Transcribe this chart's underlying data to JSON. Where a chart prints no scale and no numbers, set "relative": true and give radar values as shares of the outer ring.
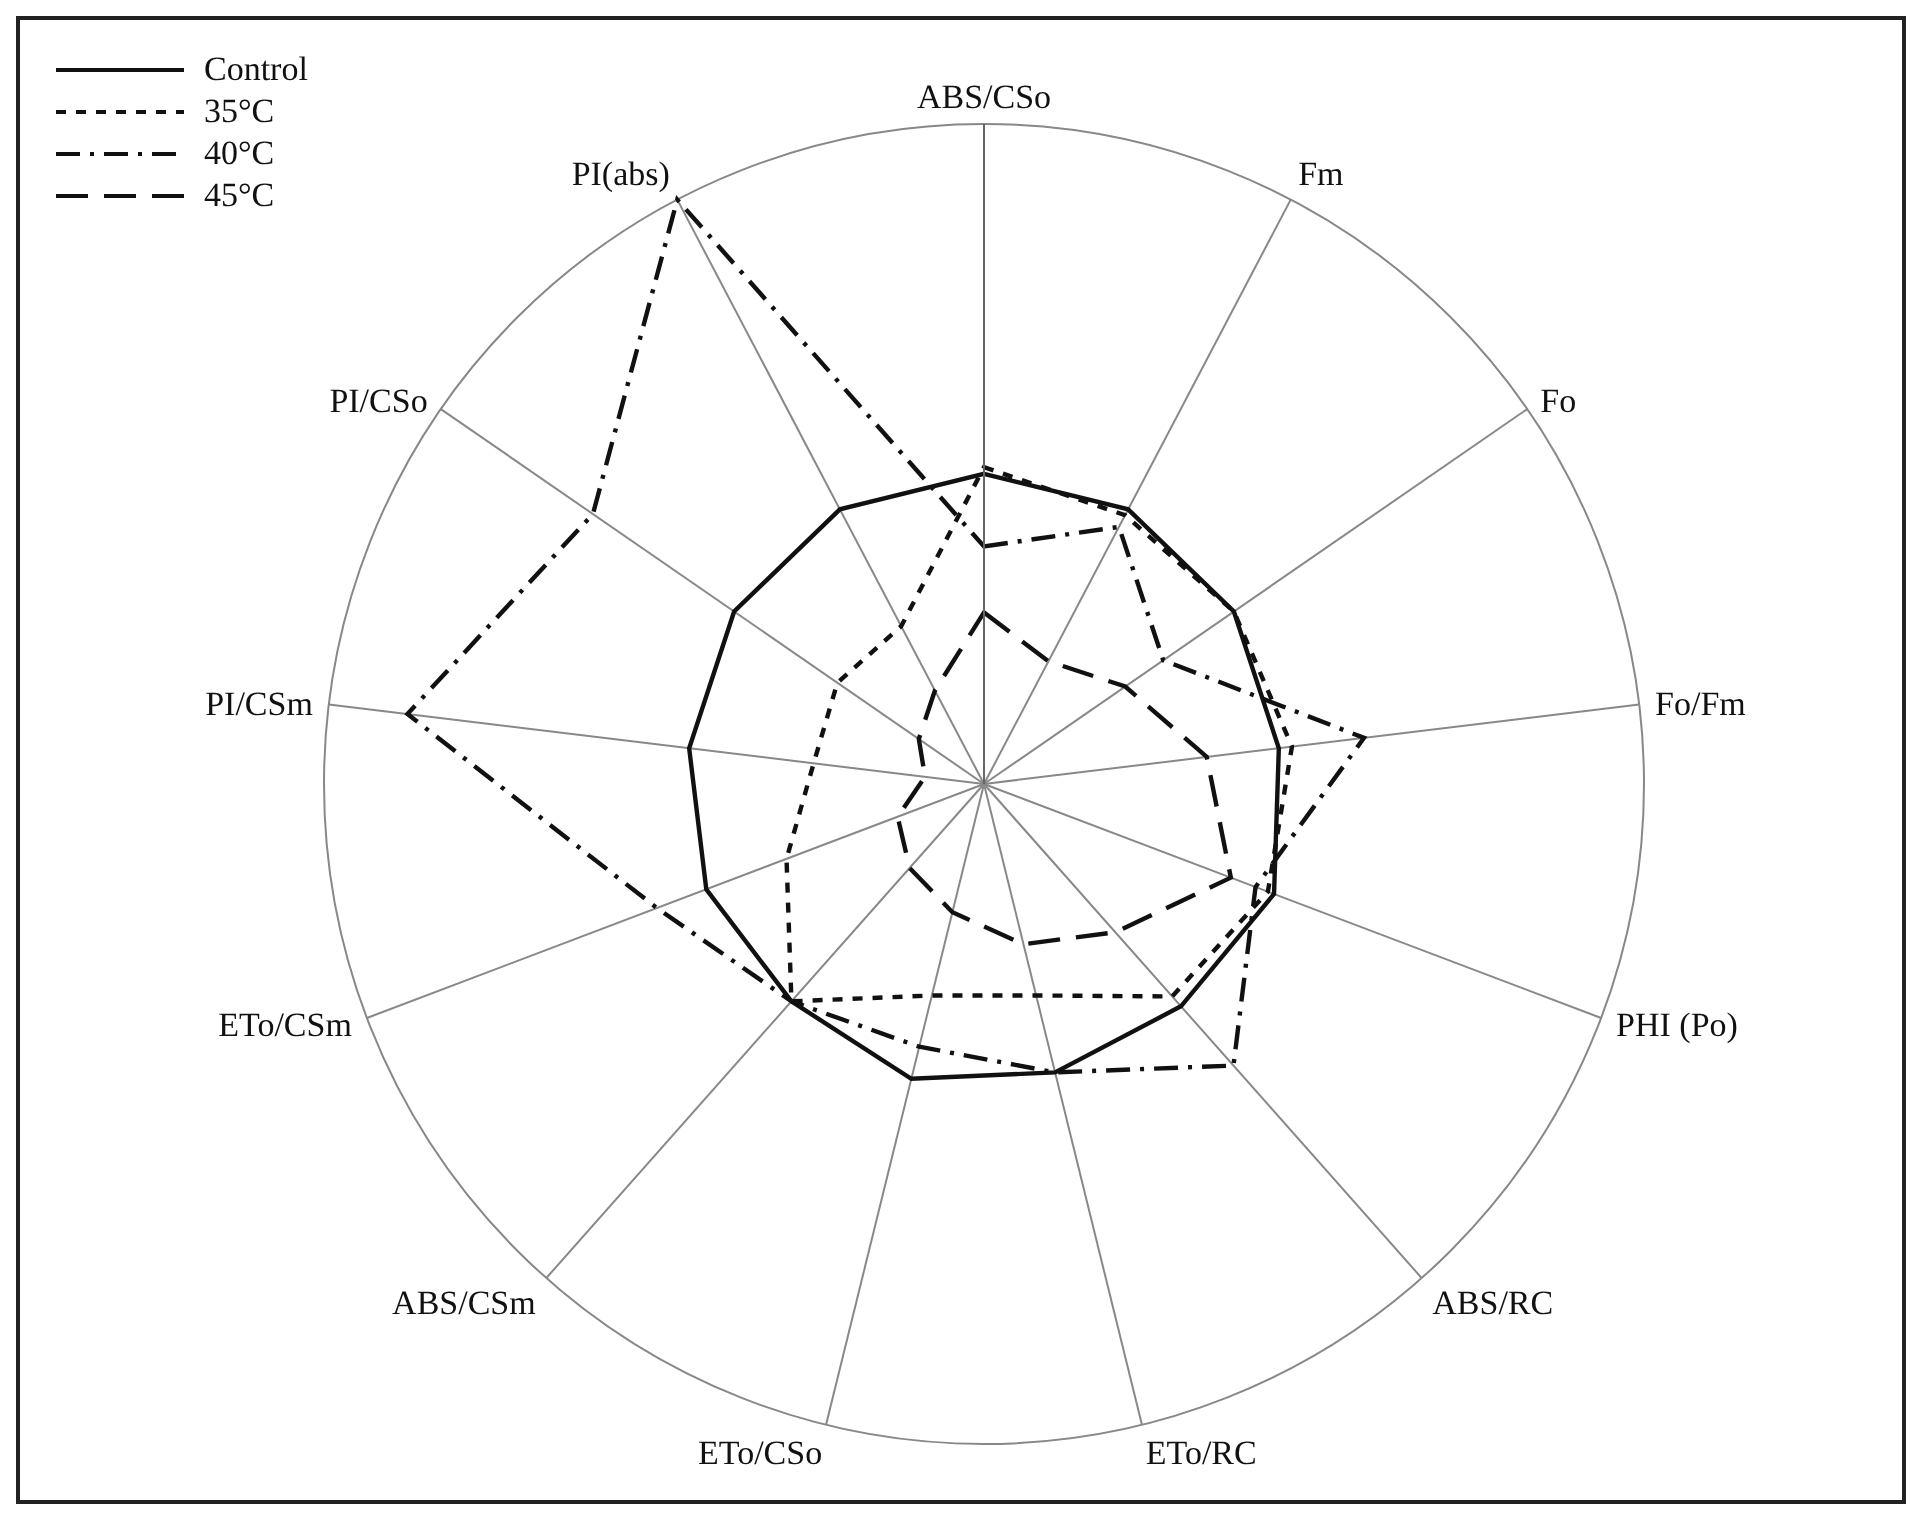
{
  "chart_data": {
    "type": "radar",
    "relative": true,
    "categories": [
      "ABS/CSo",
      "Fm",
      "Fo",
      "Fo/Fm",
      "PHI (Po)",
      "ABS/RC",
      "ETo/RC",
      "ETo/CSo",
      "ABS/CSm",
      "ETo/CSm",
      "PI/CSm",
      "PI/CSo",
      "PI(abs)"
    ],
    "series": [
      {
        "name": "Control",
        "color": "#111111",
        "line_style": "solid",
        "values": [
          0.47,
          0.47,
          0.46,
          0.45,
          0.47,
          0.45,
          0.45,
          0.46,
          0.44,
          0.45,
          0.45,
          0.46,
          0.47
        ]
      },
      {
        "name": "35°C",
        "color": "#111111",
        "line_style": "dotted",
        "values": [
          0.48,
          0.46,
          0.46,
          0.47,
          0.46,
          0.43,
          0.33,
          0.33,
          0.44,
          0.32,
          0.26,
          0.27,
          0.27
        ]
      },
      {
        "name": "40°C",
        "color": "#111111",
        "line_style": "dashdot",
        "values": [
          0.36,
          0.44,
          0.33,
          0.58,
          0.44,
          0.57,
          0.45,
          0.41,
          0.44,
          0.53,
          0.88,
          0.72,
          1.0
        ]
      },
      {
        "name": "45°C",
        "color": "#111111",
        "line_style": "dashed",
        "values": [
          0.26,
          0.21,
          0.26,
          0.34,
          0.4,
          0.3,
          0.25,
          0.2,
          0.17,
          0.14,
          0.09,
          0.12,
          0.16
        ]
      }
    ],
    "grid": true,
    "legend": "top left"
  }
}
